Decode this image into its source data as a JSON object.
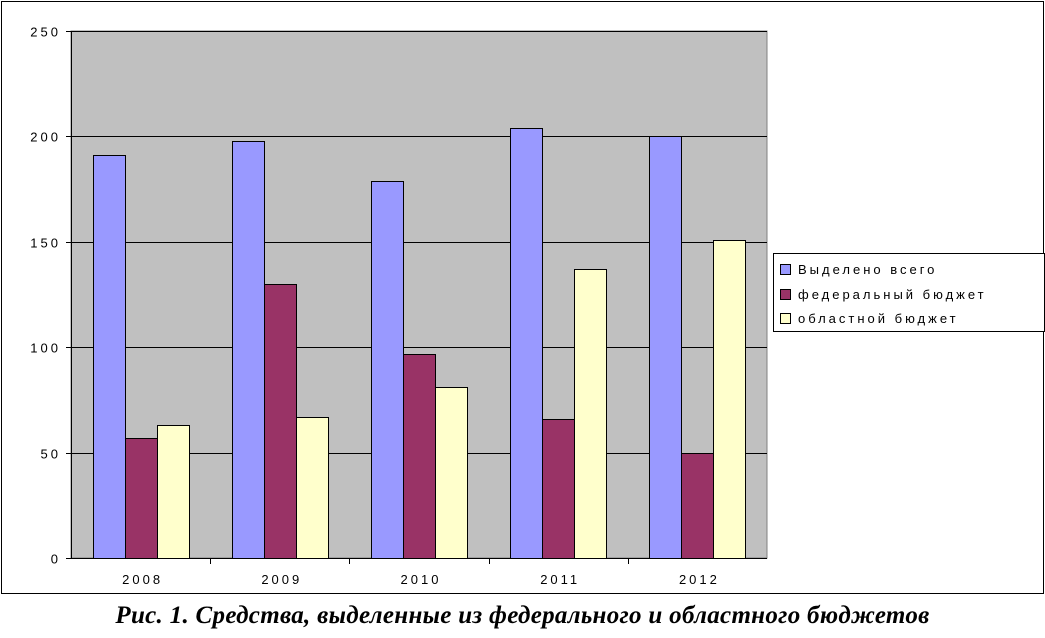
{
  "chart_data": {
    "type": "bar",
    "categories": [
      "2008",
      "2009",
      "2010",
      "2011",
      "2012"
    ],
    "series": [
      {
        "name": "Выделено всего",
        "color": "#9999ff",
        "values": [
          191,
          198,
          179,
          204,
          200
        ]
      },
      {
        "name": "федеральный бюджет",
        "color": "#993366",
        "values": [
          57,
          130,
          97,
          66,
          50
        ]
      },
      {
        "name": "областной бюджет",
        "color": "#ffffcc",
        "values": [
          63,
          67,
          81,
          137,
          151
        ]
      }
    ],
    "ylim": [
      0,
      250
    ],
    "yticks": [
      "0",
      "50",
      "100",
      "150",
      "200",
      "250"
    ],
    "plot_background": "#c0c0c0",
    "grid": true,
    "legend_position": "right"
  },
  "caption": "Рис. 1. Средства, выделенные из федерального и областного бюджетов"
}
